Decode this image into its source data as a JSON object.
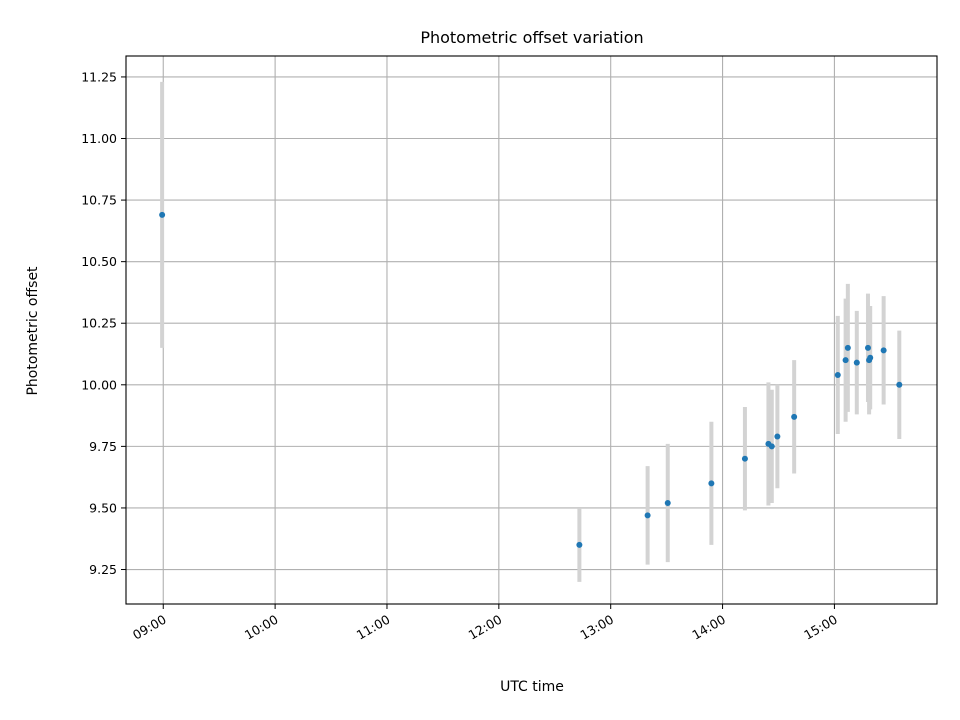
{
  "chart_data": {
    "type": "scatter",
    "title": "Photometric offset variation",
    "xlabel": "UTC time",
    "ylabel": "Photometric offset",
    "x_unit": "hours UTC",
    "xlim": [
      8.667,
      15.917
    ],
    "ylim": [
      9.11,
      11.335
    ],
    "xticks": [
      {
        "value": 9,
        "label": "09:00"
      },
      {
        "value": 10,
        "label": "10:00"
      },
      {
        "value": 11,
        "label": "11:00"
      },
      {
        "value": 12,
        "label": "12:00"
      },
      {
        "value": 13,
        "label": "13:00"
      },
      {
        "value": 14,
        "label": "14:00"
      },
      {
        "value": 15,
        "label": "15:00"
      }
    ],
    "yticks": [
      {
        "value": 9.25,
        "label": "9.25"
      },
      {
        "value": 9.5,
        "label": "9.50"
      },
      {
        "value": 9.75,
        "label": "9.75"
      },
      {
        "value": 10.0,
        "label": "10.00"
      },
      {
        "value": 10.25,
        "label": "10.25"
      },
      {
        "value": 10.5,
        "label": "10.50"
      },
      {
        "value": 10.75,
        "label": "10.75"
      },
      {
        "value": 11.0,
        "label": "11.00"
      },
      {
        "value": 11.25,
        "label": "11.25"
      }
    ],
    "grid": true,
    "points": [
      {
        "x": 8.99,
        "y": 10.69,
        "err": 0.54
      },
      {
        "x": 12.72,
        "y": 9.35,
        "err": 0.15
      },
      {
        "x": 13.33,
        "y": 9.47,
        "err": 0.2
      },
      {
        "x": 13.51,
        "y": 9.52,
        "err": 0.24
      },
      {
        "x": 13.9,
        "y": 9.6,
        "err": 0.25
      },
      {
        "x": 14.2,
        "y": 9.7,
        "err": 0.21
      },
      {
        "x": 14.41,
        "y": 9.76,
        "err": 0.25
      },
      {
        "x": 14.44,
        "y": 9.75,
        "err": 0.23
      },
      {
        "x": 14.49,
        "y": 9.79,
        "err": 0.21
      },
      {
        "x": 14.64,
        "y": 9.87,
        "err": 0.23
      },
      {
        "x": 15.03,
        "y": 10.04,
        "err": 0.24
      },
      {
        "x": 15.1,
        "y": 10.1,
        "err": 0.25
      },
      {
        "x": 15.12,
        "y": 10.15,
        "err": 0.26
      },
      {
        "x": 15.2,
        "y": 10.09,
        "err": 0.21
      },
      {
        "x": 15.3,
        "y": 10.15,
        "err": 0.22
      },
      {
        "x": 15.31,
        "y": 10.1,
        "err": 0.22
      },
      {
        "x": 15.32,
        "y": 10.11,
        "err": 0.21
      },
      {
        "x": 15.44,
        "y": 10.14,
        "err": 0.22
      },
      {
        "x": 15.58,
        "y": 10.0,
        "err": 0.22
      }
    ],
    "marker_color": "#1f77b4",
    "errorbar_color": "#d3d3d3"
  }
}
